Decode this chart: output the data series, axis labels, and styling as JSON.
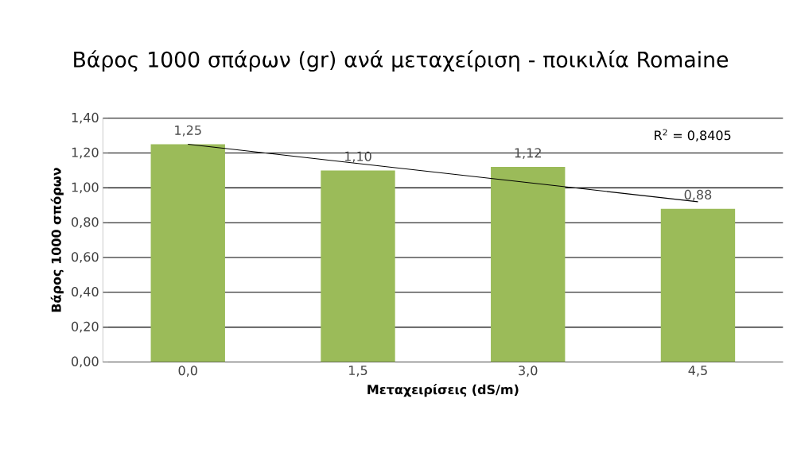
{
  "chart_data": {
    "type": "bar",
    "title": "Βάρος 1000 σπάρων (gr) ανά μεταχείριση - ποικιλία Romaine",
    "xlabel": "Μεταχειρίσεις (dS/m)",
    "ylabel": "Βάρος 1000 σπόρων",
    "categories": [
      "0,0",
      "1,5",
      "3,0",
      "4,5"
    ],
    "series": [
      {
        "color": "#9bbb59",
        "values": [
          1.25,
          1.1,
          1.12,
          0.88
        ],
        "value_labels": [
          "1,25",
          "1,10",
          "1,12",
          "0,88"
        ]
      },
      {
        "type": "line",
        "color": "#000000",
        "x": [
          "0,0",
          "4,5"
        ],
        "values": [
          1.25,
          0.92
        ]
      }
    ],
    "ylim": [
      0,
      1.4
    ],
    "yticks": [
      {
        "value": 0,
        "label": "0,00"
      },
      {
        "value": 0.2,
        "label": "0,20"
      },
      {
        "value": 0.4,
        "label": "0,40"
      },
      {
        "value": 0.6,
        "label": "0,60"
      },
      {
        "value": 0.8,
        "label": "0,80"
      },
      {
        "value": 1.0,
        "label": "1,00"
      },
      {
        "value": 1.2,
        "label": "1,20"
      },
      {
        "value": 1.4,
        "label": "1,40"
      }
    ],
    "annotations": [
      "R$^{2}$ = 0,8405"
    ],
    "grid": "y"
  }
}
